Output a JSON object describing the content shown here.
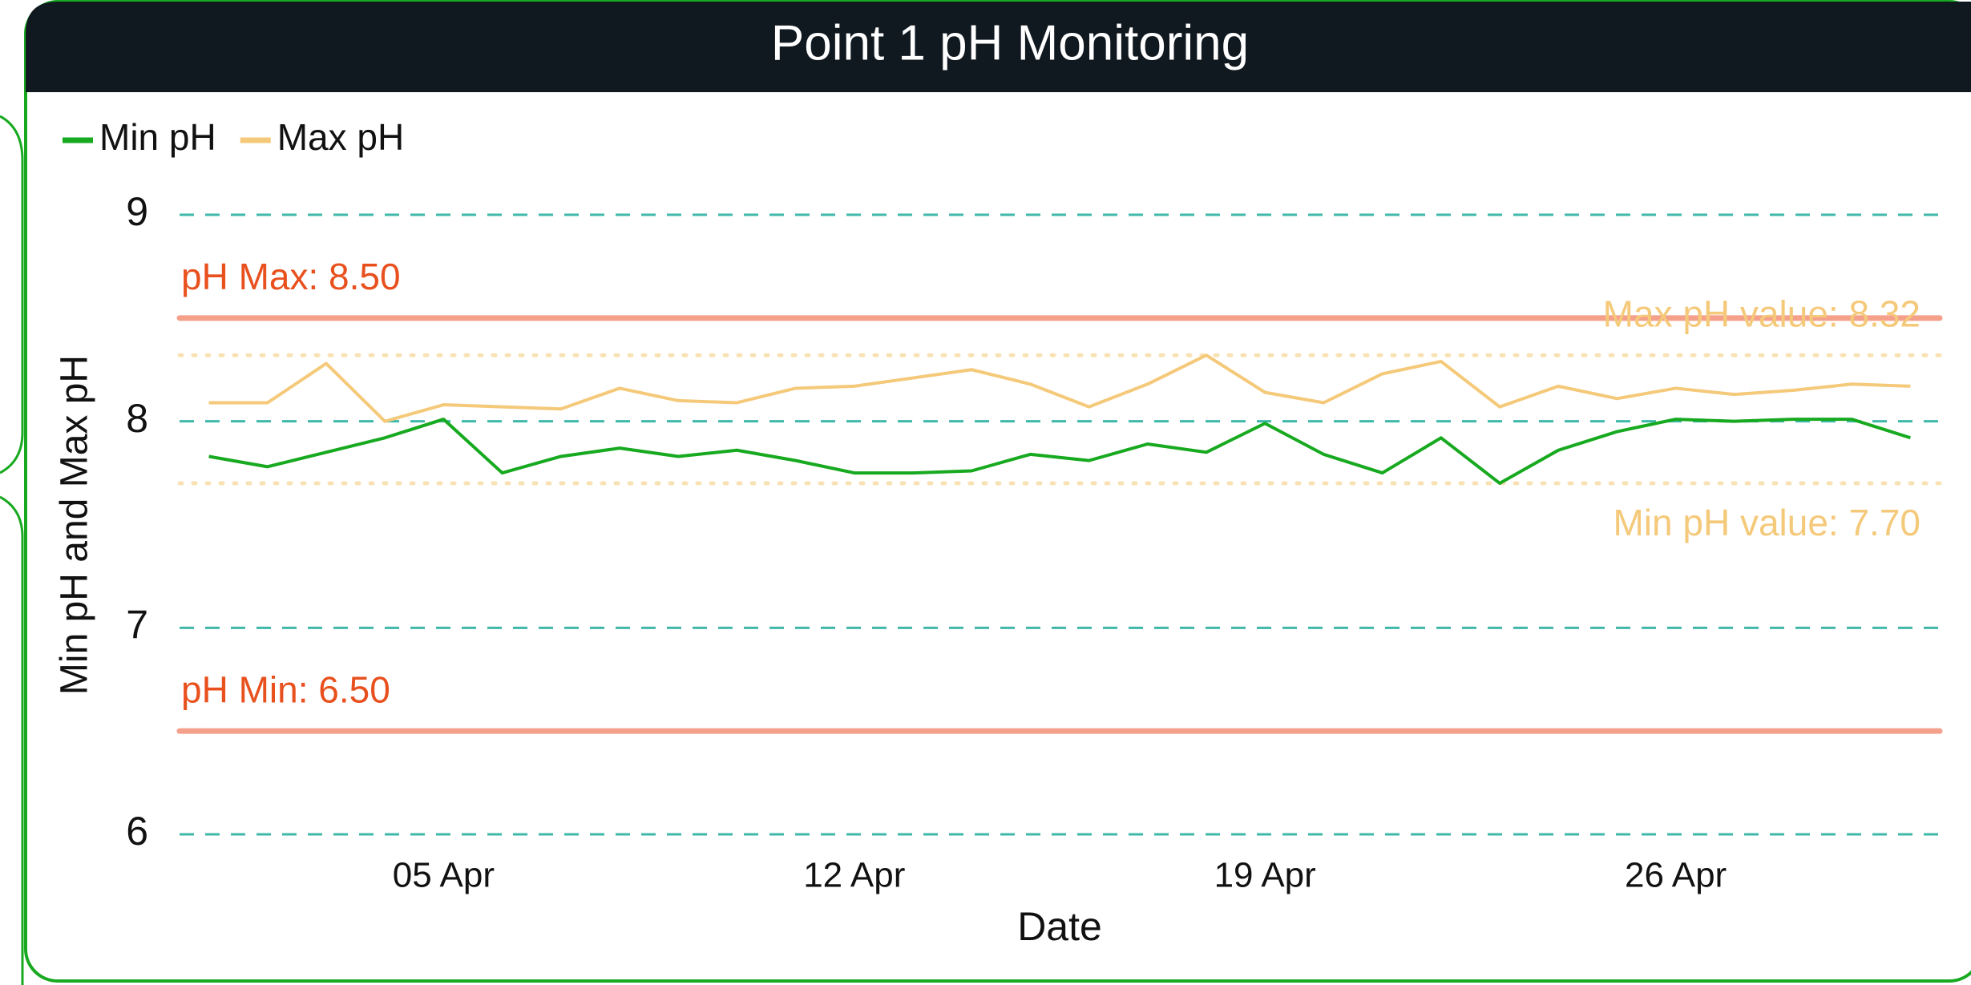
{
  "chart_data": {
    "type": "line",
    "title": "Point 1 pH Monitoring",
    "x_label": "Date",
    "y_label": "Min pH and Max pH",
    "x": [
      "01 Apr",
      "02 Apr",
      "03 Apr",
      "04 Apr",
      "05 Apr",
      "06 Apr",
      "07 Apr",
      "08 Apr",
      "09 Apr",
      "10 Apr",
      "11 Apr",
      "12 Apr",
      "13 Apr",
      "14 Apr",
      "15 Apr",
      "16 Apr",
      "17 Apr",
      "18 Apr",
      "19 Apr",
      "20 Apr",
      "21 Apr",
      "22 Apr",
      "23 Apr",
      "24 Apr",
      "25 Apr",
      "26 Apr",
      "27 Apr",
      "28 Apr",
      "29 Apr",
      "30 Apr"
    ],
    "xticks": [
      "05 Apr",
      "12 Apr",
      "19 Apr",
      "26 Apr"
    ],
    "series": [
      {
        "name": "Min pH",
        "color": "#17a91f",
        "values": [
          7.83,
          7.78,
          7.85,
          7.92,
          8.01,
          7.75,
          7.83,
          7.87,
          7.83,
          7.86,
          7.81,
          7.75,
          7.75,
          7.76,
          7.84,
          7.81,
          7.89,
          7.85,
          7.99,
          7.84,
          7.75,
          7.92,
          7.7,
          7.86,
          7.95,
          8.01,
          8.0,
          8.01,
          8.01,
          7.92
        ]
      },
      {
        "name": "Max pH",
        "color": "#f5c97a",
        "values": [
          8.09,
          8.09,
          8.28,
          8.0,
          8.08,
          8.07,
          8.06,
          8.16,
          8.1,
          8.09,
          8.16,
          8.17,
          8.21,
          8.25,
          8.18,
          8.07,
          8.18,
          8.32,
          8.14,
          8.09,
          8.23,
          8.29,
          8.07,
          8.17,
          8.11,
          8.16,
          8.13,
          8.15,
          8.18,
          8.17
        ]
      }
    ],
    "reference_lines": [
      {
        "label": "pH Max: 8.50",
        "value": 8.5,
        "color": "#f4a08a",
        "label_color": "#e8501e",
        "style": "solid"
      },
      {
        "label": "pH Min: 6.50",
        "value": 6.5,
        "color": "#f4a08a",
        "label_color": "#e8501e",
        "style": "solid"
      },
      {
        "label": "Max pH value: 8.32",
        "value": 8.32,
        "color": "#f8e2b4",
        "label_color": "#f5c97a",
        "style": "dotted"
      },
      {
        "label": "Min pH value: 7.70",
        "value": 7.7,
        "color": "#f8e2b4",
        "label_color": "#f5c97a",
        "style": "dotted"
      }
    ],
    "ylim": [
      6,
      9
    ],
    "yticks": [
      6,
      7,
      8,
      9
    ],
    "grid": true,
    "grid_color": "#3fb8aa",
    "legend": "top-left"
  }
}
